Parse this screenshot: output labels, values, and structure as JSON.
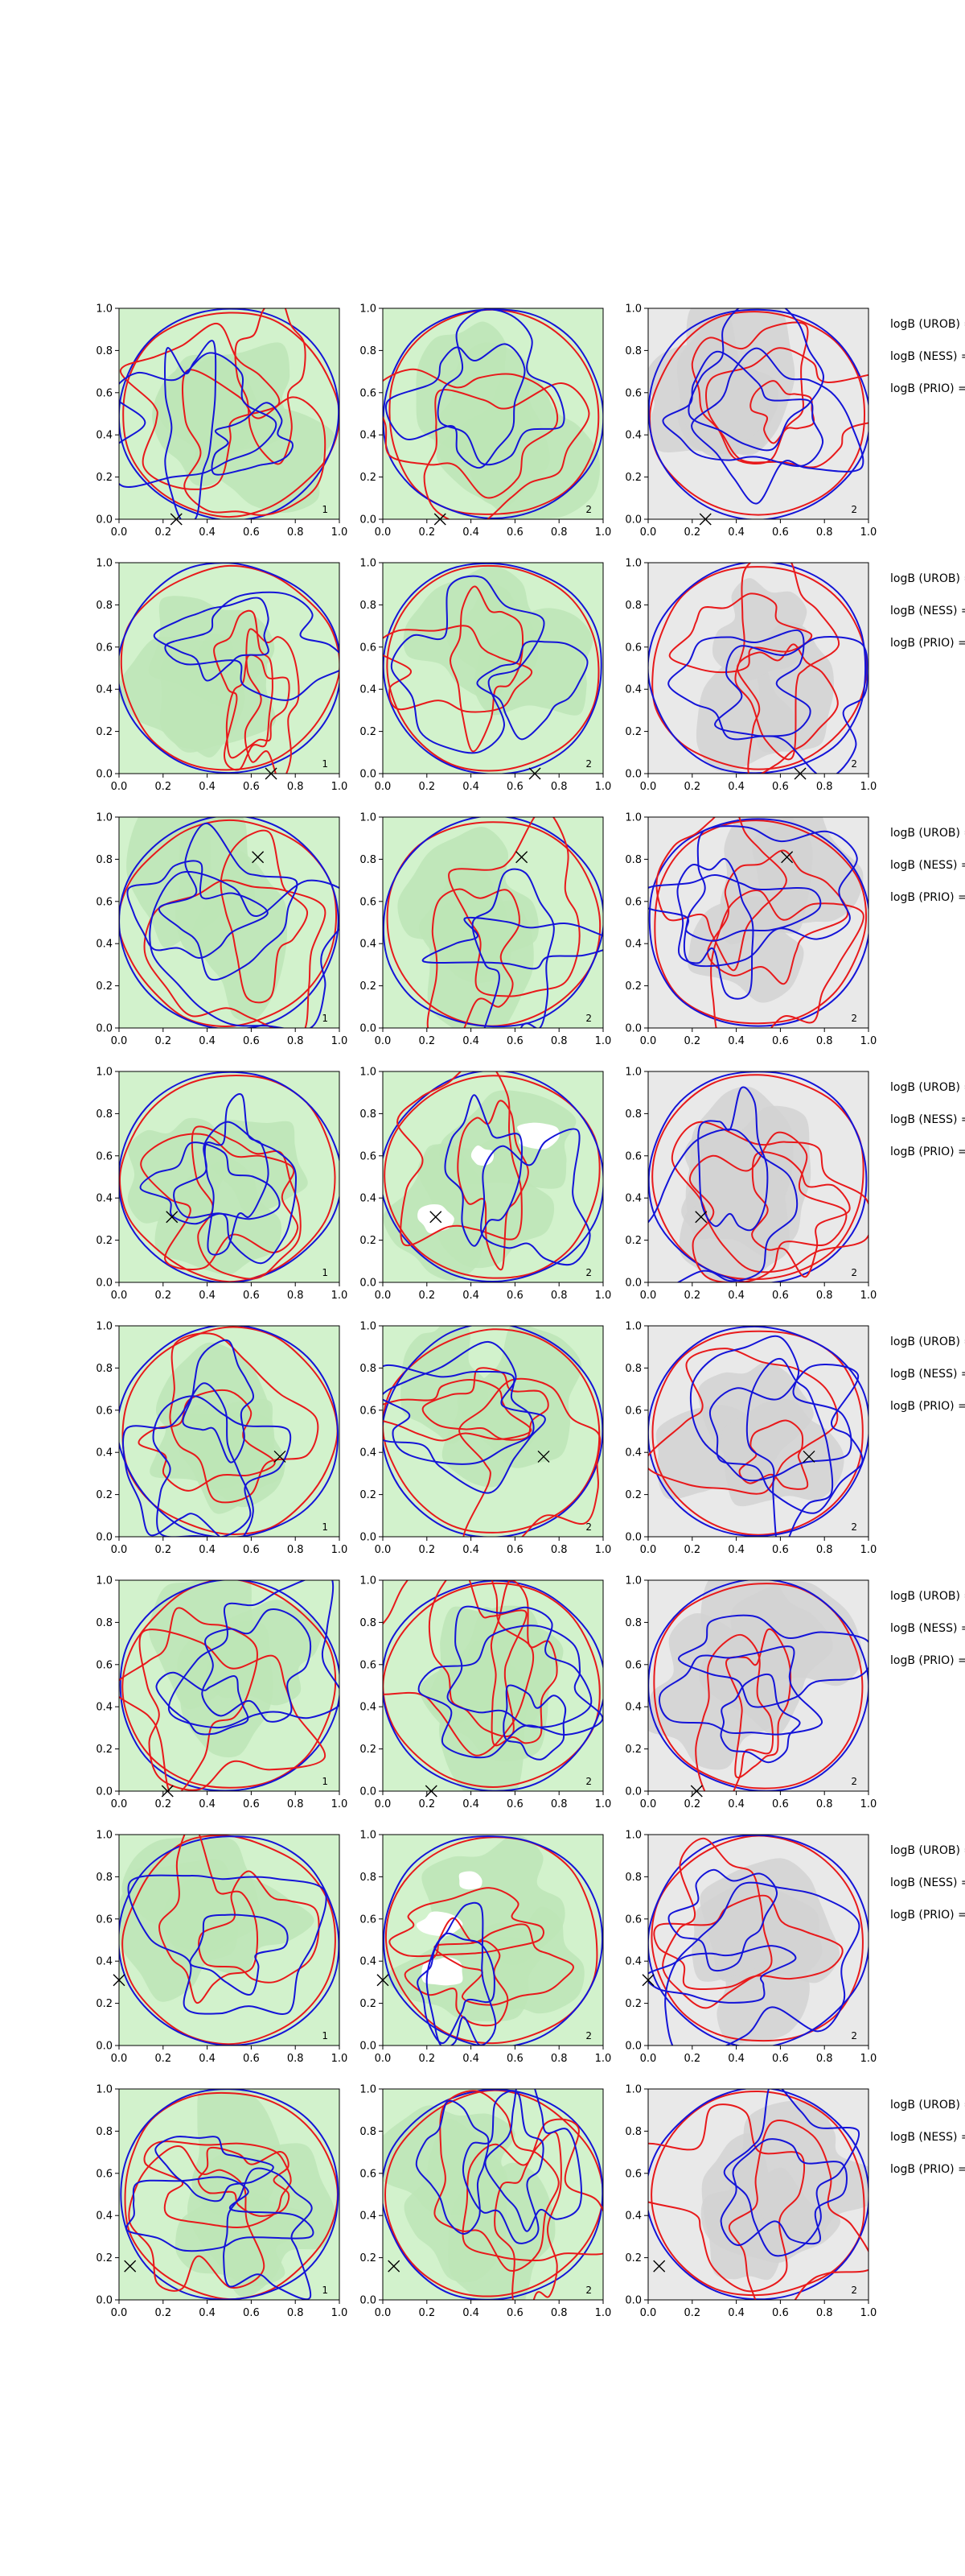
{
  "chart_data": {
    "type": "contour-grid",
    "rows": 8,
    "cols": 3,
    "xlim": [
      0.0,
      1.0
    ],
    "ylim": [
      0.0,
      1.0
    ],
    "xticks": [
      "0.0",
      "0.2",
      "0.4",
      "0.6",
      "0.8",
      "1.0"
    ],
    "yticks": [
      "0.0",
      "0.2",
      "0.4",
      "0.6",
      "0.8",
      "1.0"
    ],
    "panel_numbers": [
      [
        "1",
        "2",
        "2"
      ],
      [
        "1",
        "2",
        "2"
      ],
      [
        "1",
        "2",
        "2"
      ],
      [
        "1",
        "2",
        "2"
      ],
      [
        "1",
        "2",
        "2"
      ],
      [
        "1",
        "2",
        "2"
      ],
      [
        "1",
        "2",
        "2"
      ],
      [
        "1",
        "2",
        "2"
      ]
    ],
    "markers": [
      {
        "x": 0.26,
        "y": 0.0
      },
      {
        "x": 0.69,
        "y": 0.0
      },
      {
        "x": 0.63,
        "y": 0.81
      },
      {
        "x": 0.24,
        "y": 0.31
      },
      {
        "x": 0.73,
        "y": 0.38
      },
      {
        "x": 0.22,
        "y": 0.0
      },
      {
        "x": 0.0,
        "y": 0.31
      },
      {
        "x": 0.05,
        "y": 0.16
      }
    ],
    "side_labels": [
      "logB (UROB) =",
      "logB (NESS) =",
      "logB (PRIO) ="
    ],
    "colors": {
      "red_contour": "#e8191b",
      "blue_contour": "#1414d8",
      "bg_green_light": "#d2f2cc",
      "bg_green_mid": "#bde5b6",
      "bg_gray_light": "#e9e9e9",
      "bg_gray_mid": "#d2d2d2"
    }
  }
}
